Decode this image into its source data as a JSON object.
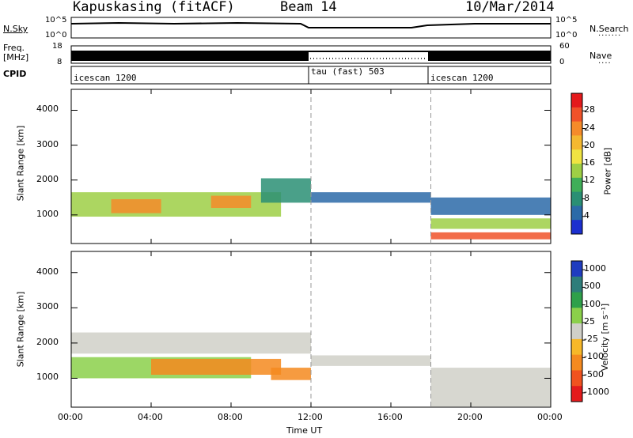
{
  "header": {
    "station": "Kapuskasing (fitACF)",
    "beam": "Beam 14",
    "date": "10/Mar/2014"
  },
  "panel_labels": {
    "nsky": "N.Sky",
    "nsearch": "N.Search",
    "freq_line1": "Freq.",
    "freq_line2": "[MHz]",
    "nave": "Nave",
    "cpid": "CPID"
  },
  "axis_ticks": {
    "nsky_left": [
      "10^5",
      "10^0"
    ],
    "nsky_right": [
      "10^5",
      "10^0"
    ],
    "freq_left": [
      "18",
      "8"
    ],
    "nave_right": [
      "60",
      "0"
    ]
  },
  "cpid_segments": [
    {
      "label": "icescan 1200",
      "start_h": 0,
      "end_h": 12
    },
    {
      "label": "tau (fast) 503",
      "start_h": 12,
      "end_h": 18
    },
    {
      "label": "icescan 1200",
      "start_h": 18,
      "end_h": 24
    }
  ],
  "colorbars": {
    "power": {
      "label": "Power [dB]",
      "ticks": [
        "28",
        "24",
        "20",
        "16",
        "12",
        "8",
        "4"
      ],
      "colors": [
        "#e41a1c",
        "#f0522a",
        "#f58b2a",
        "#f4b830",
        "#f0e442",
        "#9ecf45",
        "#3fae58",
        "#2a8f74",
        "#2b6aa8",
        "#1c2fcf"
      ]
    },
    "velocity": {
      "label": "Velocity [m s⁻¹]",
      "ticks": [
        "1000",
        "500",
        "100",
        "25",
        "-25",
        "-100",
        "-500",
        "-1000"
      ],
      "colors": [
        "#1f3cbf",
        "#2e7d7a",
        "#2fa04a",
        "#8bd04a",
        "#d0d0c8",
        "#f7b829",
        "#f58a1f",
        "#f0521f",
        "#e31a1c"
      ]
    }
  },
  "chart_data": [
    {
      "type": "heatmap",
      "panel": "power",
      "ylabel": "Slant Range [km]",
      "xlabel": "Time UT",
      "x_ticks": [
        "00:00",
        "04:00",
        "08:00",
        "12:00",
        "16:00",
        "20:00",
        "00:00"
      ],
      "xlim_hours": [
        0,
        24
      ],
      "y_ticks": [
        1000,
        2000,
        3000,
        4000
      ],
      "ylim": [
        180,
        4600
      ],
      "vertical_markers_hours": [
        12,
        18
      ],
      "bands": [
        {
          "start_h": 0.0,
          "end_h": 10.5,
          "range_lo": 950,
          "range_hi": 1650,
          "value": 14
        },
        {
          "start_h": 2.0,
          "end_h": 4.5,
          "range_lo": 1050,
          "range_hi": 1450,
          "value": 24
        },
        {
          "start_h": 7.0,
          "end_h": 9.0,
          "range_lo": 1200,
          "range_hi": 1550,
          "value": 25
        },
        {
          "start_h": 9.5,
          "end_h": 12.0,
          "range_lo": 1350,
          "range_hi": 2050,
          "value": 9
        },
        {
          "start_h": 12.0,
          "end_h": 18.0,
          "range_lo": 1350,
          "range_hi": 1650,
          "value": 6
        },
        {
          "start_h": 18.0,
          "end_h": 24.0,
          "range_lo": 1000,
          "range_hi": 1500,
          "value": 5
        },
        {
          "start_h": 18.0,
          "end_h": 24.0,
          "range_lo": 600,
          "range_hi": 900,
          "value": 14
        },
        {
          "start_h": 18.0,
          "end_h": 24.0,
          "range_lo": 300,
          "range_hi": 500,
          "value": 27
        }
      ]
    },
    {
      "type": "heatmap",
      "panel": "velocity",
      "ylabel": "Slant Range [km]",
      "xlabel": "Time UT",
      "x_ticks": [
        "00:00",
        "04:00",
        "08:00",
        "12:00",
        "16:00",
        "20:00",
        "00:00"
      ],
      "xlim_hours": [
        0,
        24
      ],
      "y_ticks": [
        1000,
        2000,
        3000,
        4000
      ],
      "ylim": [
        180,
        4600
      ],
      "vertical_markers_hours": [
        12,
        18
      ],
      "bands": [
        {
          "start_h": 0.0,
          "end_h": 9.0,
          "range_lo": 1000,
          "range_hi": 1600,
          "value": 60
        },
        {
          "start_h": 4.0,
          "end_h": 10.5,
          "range_lo": 1100,
          "range_hi": 1550,
          "value": -200
        },
        {
          "start_h": 10.0,
          "end_h": 12.0,
          "range_lo": 950,
          "range_hi": 1300,
          "value": -150
        },
        {
          "start_h": 12.0,
          "end_h": 18.0,
          "range_lo": 1350,
          "range_hi": 1650,
          "value": 0
        },
        {
          "start_h": 18.0,
          "end_h": 24.0,
          "range_lo": 200,
          "range_hi": 1300,
          "value": 0
        },
        {
          "start_h": 0.0,
          "end_h": 12.0,
          "range_lo": 1700,
          "range_hi": 2300,
          "value": 10
        }
      ]
    }
  ]
}
